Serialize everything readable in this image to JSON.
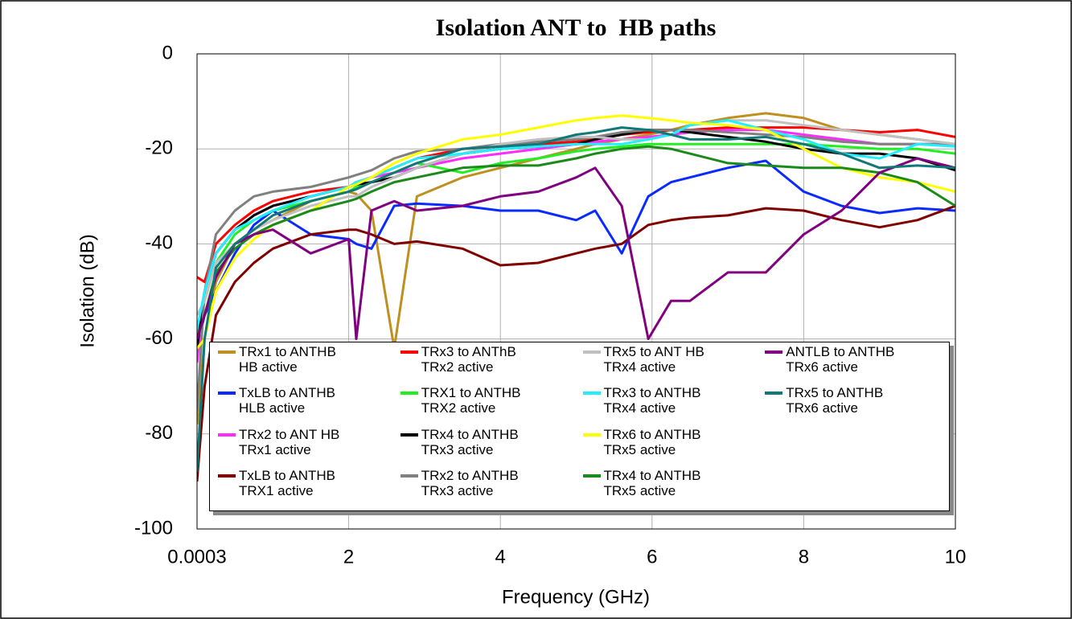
{
  "chart_data": {
    "type": "line",
    "title": "Isolation ANT to  HB paths",
    "xlabel": "Frequency (GHz)",
    "ylabel": "Isolation (dB)",
    "xlim": [
      0.0003,
      10
    ],
    "xticks": [
      0.0003,
      2,
      4,
      6,
      8,
      10
    ],
    "ylim": [
      -100,
      0
    ],
    "yticks": [
      0,
      -20,
      -40,
      -60,
      -80,
      -100
    ],
    "grid": true,
    "legend": "bottom",
    "x": [
      0.0003,
      0.1,
      0.25,
      0.5,
      0.75,
      1,
      1.5,
      2,
      2.1,
      2.3,
      2.6,
      2.9,
      3.5,
      4,
      4.5,
      5,
      5.25,
      5.6,
      5.95,
      6.25,
      6.5,
      7,
      7.5,
      8,
      8.5,
      9,
      9.5,
      10
    ],
    "series": [
      {
        "name": "TRx1 to ANTHB\nHB active",
        "color": "#bf8f1f",
        "values": [
          -78,
          -60,
          -48,
          -40,
          -37,
          -35,
          -31,
          -29,
          -29.5,
          -33,
          -62,
          -30,
          -26,
          -24,
          -22,
          -20,
          -19,
          -18,
          -17,
          -16,
          -15,
          -13.5,
          -12.5,
          -13.5,
          -16,
          -17,
          -18,
          -19
        ]
      },
      {
        "name": "TxLB to ANTHB\nHLB active",
        "color": "#0a2bff",
        "values": [
          -62,
          -55,
          -50,
          -42,
          -36,
          -33,
          -38,
          -39,
          -40,
          -41,
          -32,
          -31.5,
          -32,
          -33,
          -33,
          -35,
          -33,
          -42,
          -30,
          -27,
          -26,
          -24,
          -22.5,
          -29,
          -32,
          -33.5,
          -32.5,
          -33
        ]
      },
      {
        "name": "TRx2 to ANT HB\nTRx1 active",
        "color": "#ff2bff",
        "values": [
          -65,
          -50,
          -42,
          -37,
          -34,
          -32,
          -30,
          -28,
          -27.5,
          -26,
          -25,
          -24,
          -22,
          -21,
          -20,
          -19,
          -18.5,
          -18,
          -17.5,
          -17,
          -16.5,
          -16,
          -16,
          -17,
          -18,
          -19,
          -19,
          -19
        ]
      },
      {
        "name": "TxLB to ANTHB\nTRX1 active",
        "color": "#800000",
        "values": [
          -90,
          -70,
          -55,
          -48,
          -44,
          -41,
          -38,
          -37,
          -37,
          -38,
          -40,
          -39.5,
          -41,
          -44.5,
          -44,
          -42,
          -41,
          -40,
          -36,
          -35,
          -34.5,
          -34,
          -32.5,
          -33,
          -35,
          -36.5,
          -35,
          -32
        ]
      },
      {
        "name": "TRx3 to ANThB\nTRx2 active",
        "color": "#ff0000",
        "values": [
          -47,
          -48,
          -40,
          -36,
          -33,
          -31,
          -29,
          -28,
          -27,
          -26,
          -24,
          -22,
          -20,
          -19.5,
          -19,
          -18.5,
          -18,
          -17,
          -16.5,
          -16,
          -16,
          -15.5,
          -15.5,
          -15.5,
          -16,
          -16.5,
          -16,
          -17.5
        ]
      },
      {
        "name": "TRX1 to ANTHB\nTRX2 active",
        "color": "#22ee22",
        "values": [
          -60,
          -52,
          -44,
          -38,
          -35,
          -33,
          -31,
          -29,
          -28,
          -27,
          -25,
          -23,
          -25,
          -23,
          -22,
          -20.5,
          -20,
          -19.5,
          -19,
          -19,
          -19,
          -19,
          -19,
          -19,
          -19.5,
          -20,
          -20,
          -21
        ]
      },
      {
        "name": "TRx4 to ANTHB\nTRx3 active",
        "color": "#000000",
        "values": [
          -62,
          -50,
          -42,
          -37,
          -34,
          -32,
          -30,
          -28,
          -27.5,
          -27,
          -26,
          -24,
          -21,
          -20,
          -19.5,
          -19,
          -18,
          -17,
          -16,
          -16,
          -16.5,
          -17.5,
          -18.5,
          -20,
          -21,
          -21,
          -22,
          -24.5
        ]
      },
      {
        "name": "TRx2 to ANTHB\nTRx3 active",
        "color": "#808080",
        "values": [
          -75,
          -50,
          -38,
          -33,
          -30,
          -29,
          -28,
          -26,
          -25.5,
          -24.5,
          -22,
          -20.5,
          -20,
          -19,
          -18.5,
          -18,
          -17.5,
          -16.5,
          -16,
          -16,
          -16,
          -16.5,
          -17,
          -17.5,
          -18.5,
          -19,
          -19,
          -19
        ]
      },
      {
        "name": "TRx5 to ANT HB\nTRx4 active",
        "color": "#c0c0c0",
        "values": [
          -55,
          -52,
          -44,
          -40,
          -37,
          -35,
          -32,
          -30,
          -30,
          -28,
          -26,
          -24,
          -21,
          -19,
          -18,
          -17.5,
          -17.5,
          -18,
          -18,
          -17,
          -15,
          -14,
          -14,
          -15,
          -16,
          -17,
          -18,
          -19
        ]
      },
      {
        "name": "TRx3 to ANTHB\nTRx4 active",
        "color": "#22eeff",
        "values": [
          -58,
          -50,
          -42,
          -37,
          -35,
          -33,
          -30,
          -28,
          -27,
          -26,
          -24,
          -22,
          -21,
          -20,
          -19.5,
          -19,
          -19,
          -19,
          -18,
          -17,
          -15,
          -14,
          -16,
          -18,
          -21,
          -22,
          -19,
          -19.5
        ]
      },
      {
        "name": "TRx6 to ANTHB\nTRx5 active",
        "color": "#ffff00",
        "values": [
          -62,
          -60,
          -50,
          -43,
          -39,
          -36,
          -33,
          -28,
          -27.5,
          -26,
          -23,
          -21,
          -18,
          -17,
          -15.5,
          -14,
          -13.5,
          -13,
          -13.5,
          -14,
          -14.5,
          -15,
          -16,
          -20,
          -24,
          -26,
          -27,
          -29
        ]
      },
      {
        "name": "TRx4 to ANTHB\nTRx5 active",
        "color": "#1a8a1a",
        "values": [
          -60,
          -55,
          -46,
          -41,
          -38,
          -36,
          -33,
          -31,
          -30.5,
          -29,
          -27,
          -26,
          -24,
          -23.5,
          -23.5,
          -22,
          -21,
          -20,
          -19.5,
          -20,
          -21,
          -23,
          -23.5,
          -24,
          -24,
          -25,
          -27,
          -32
        ]
      },
      {
        "name": "ANTLB to ANTHB\nTRx6 active",
        "color": "#800080",
        "values": [
          -60,
          -55,
          -47,
          -40,
          -38,
          -37,
          -42,
          -39,
          -60,
          -33,
          -31,
          -33,
          -32,
          -30,
          -29,
          -26,
          -24,
          -32,
          -60,
          -52,
          -52,
          -46,
          -46,
          -38,
          -33,
          -25,
          -22,
          -24
        ]
      },
      {
        "name": "TRx5 to ANTHB\nTRx6 active",
        "color": "#117777",
        "values": [
          -88,
          -60,
          -45,
          -40,
          -37,
          -34,
          -31,
          -29,
          -28.5,
          -27,
          -25,
          -23,
          -20,
          -19.5,
          -19,
          -17,
          -16.5,
          -15.5,
          -16,
          -17,
          -18,
          -18,
          -17.5,
          -19,
          -21,
          -24,
          -23.5,
          -24
        ]
      }
    ]
  }
}
